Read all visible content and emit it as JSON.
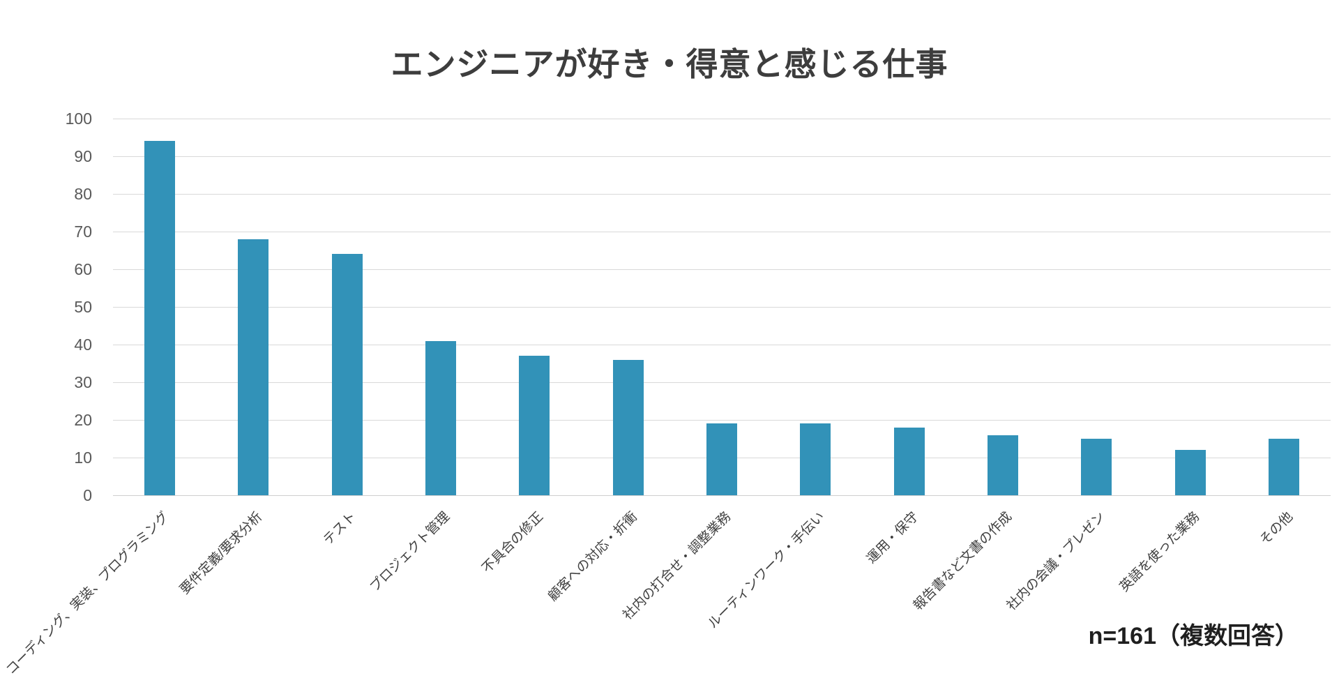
{
  "chart_data": {
    "type": "bar",
    "title": "エンジニアが好き・得意と感じる仕事",
    "categories": [
      "コーディング、実装、プログラミング",
      "要件定義/要求分析",
      "テスト",
      "プロジェクト管理",
      "不具合の修正",
      "顧客への対応・折衝",
      "社内の打合せ・調整業務",
      "ルーティンワーク・手伝い",
      "運用・保守",
      "報告書など文書の作成",
      "社内の会議・プレゼン",
      "英語を使った業務",
      "その他"
    ],
    "values": [
      94,
      68,
      64,
      41,
      37,
      36,
      19,
      19,
      18,
      16,
      15,
      12,
      15
    ],
    "yticks": [
      0,
      10,
      20,
      30,
      40,
      50,
      60,
      70,
      80,
      90,
      100
    ],
    "ylim": [
      0,
      100
    ],
    "xlabel": "",
    "ylabel": "",
    "grid": true,
    "legend_position": "none",
    "annotation": "n=161（複数回答）",
    "bar_color": "#3292b8",
    "gridline_color": "#d9d9d9",
    "title_color": "#3d3d3d",
    "axis_tick_color": "#595959",
    "category_label_color": "#404040"
  }
}
